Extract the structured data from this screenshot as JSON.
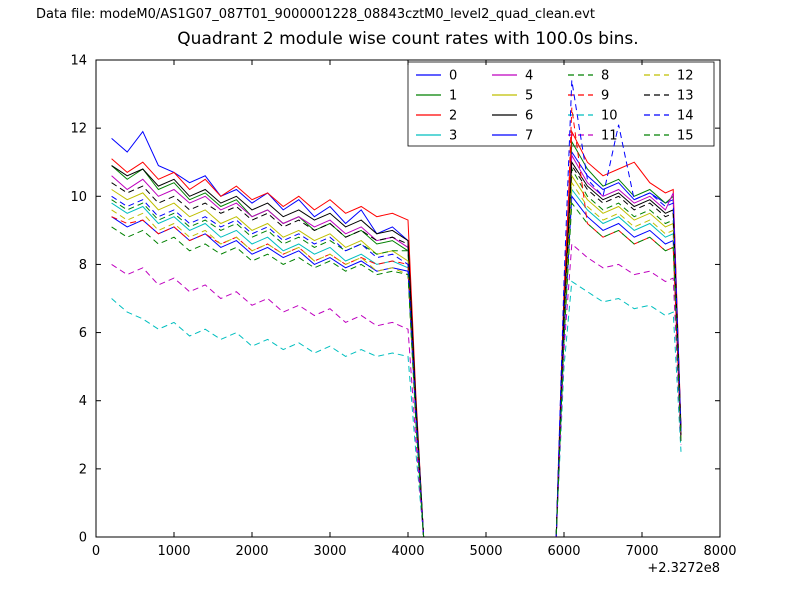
{
  "header": {
    "data_file": "Data file: modeM0/AS1G07_087T01_9000001228_08843cztM0_level2_quad_clean.evt"
  },
  "chart_data": {
    "type": "line",
    "title": "Quadrant 2 module wise count rates with 100.0s bins.",
    "xlabel": "",
    "ylabel": "",
    "x_offset_label": "+2.3272e8",
    "xlim": [
      0,
      8000
    ],
    "ylim": [
      0,
      14
    ],
    "xticks": [
      0,
      1000,
      2000,
      3000,
      4000,
      5000,
      6000,
      7000,
      8000
    ],
    "yticks": [
      0,
      2,
      4,
      6,
      8,
      10,
      12,
      14
    ],
    "grid": false,
    "legend_position": "upper center",
    "legend_columns": 4,
    "x": [
      200,
      400,
      600,
      800,
      1000,
      1200,
      1400,
      1600,
      1800,
      2000,
      2200,
      2400,
      2600,
      2800,
      3000,
      3200,
      3400,
      3600,
      3800,
      4000,
      4100,
      4200,
      5900,
      6000,
      6100,
      6300,
      6500,
      6700,
      6900,
      7100,
      7300,
      7400,
      7500
    ],
    "series": [
      {
        "name": "0",
        "color": "#0000ff",
        "style": "solid",
        "values": [
          11.7,
          11.3,
          11.9,
          10.9,
          10.7,
          10.4,
          10.6,
          10.0,
          10.2,
          9.8,
          10.1,
          9.6,
          9.9,
          9.4,
          9.7,
          9.2,
          9.6,
          8.9,
          9.1,
          8.7,
          4.0,
          0,
          0,
          7.0,
          11.3,
          10.6,
          10.2,
          10.4,
          9.9,
          10.1,
          9.8,
          9.9,
          3.1
        ]
      },
      {
        "name": "1",
        "color": "#008000",
        "style": "solid",
        "values": [
          10.9,
          10.5,
          10.8,
          10.2,
          10.4,
          9.9,
          10.1,
          9.7,
          9.9,
          9.4,
          9.6,
          9.2,
          9.4,
          9.0,
          9.2,
          8.8,
          9.0,
          8.6,
          8.7,
          8.4,
          3.8,
          0,
          0,
          6.5,
          11.6,
          10.8,
          10.3,
          10.5,
          10.0,
          10.2,
          9.8,
          10.0,
          3.0
        ]
      },
      {
        "name": "2",
        "color": "#ff0000",
        "style": "solid",
        "values": [
          11.1,
          10.7,
          11.0,
          10.5,
          10.7,
          10.2,
          10.5,
          10.0,
          10.3,
          9.9,
          10.1,
          9.7,
          10.0,
          9.6,
          9.9,
          9.5,
          9.7,
          9.4,
          9.5,
          9.3,
          4.2,
          0,
          0,
          7.2,
          11.9,
          11.0,
          10.6,
          10.8,
          11.0,
          10.4,
          10.1,
          10.2,
          3.2
        ]
      },
      {
        "name": "3",
        "color": "#00bfbf",
        "style": "solid",
        "values": [
          9.8,
          9.5,
          9.7,
          9.2,
          9.4,
          9.0,
          9.2,
          8.8,
          9.0,
          8.6,
          8.8,
          8.4,
          8.6,
          8.3,
          8.5,
          8.1,
          8.3,
          8.0,
          8.1,
          7.9,
          3.6,
          0,
          0,
          6.0,
          10.2,
          9.6,
          9.2,
          9.4,
          9.0,
          9.2,
          8.8,
          8.9,
          2.9
        ]
      },
      {
        "name": "4",
        "color": "#bf00bf",
        "style": "solid",
        "values": [
          10.6,
          10.2,
          10.5,
          10.0,
          10.2,
          9.8,
          10.0,
          9.6,
          9.8,
          9.4,
          9.6,
          9.2,
          9.4,
          9.1,
          9.3,
          8.9,
          9.1,
          8.7,
          8.8,
          8.5,
          3.9,
          0,
          0,
          6.6,
          11.2,
          10.4,
          10.0,
          10.2,
          9.8,
          10.0,
          9.6,
          10.1,
          3.1
        ]
      },
      {
        "name": "5",
        "color": "#bfbf00",
        "style": "solid",
        "values": [
          10.2,
          9.9,
          10.1,
          9.6,
          9.8,
          9.4,
          9.6,
          9.2,
          9.4,
          9.0,
          9.2,
          8.8,
          9.0,
          8.7,
          8.9,
          8.5,
          8.7,
          8.3,
          8.4,
          8.1,
          3.7,
          0,
          0,
          6.2,
          10.6,
          9.9,
          9.5,
          9.7,
          9.3,
          9.5,
          9.1,
          9.2,
          3.0
        ]
      },
      {
        "name": "6",
        "color": "#000000",
        "style": "solid",
        "values": [
          10.9,
          10.6,
          10.8,
          10.3,
          10.5,
          10.0,
          10.2,
          9.8,
          10.0,
          9.6,
          9.8,
          9.4,
          9.6,
          9.3,
          9.5,
          9.1,
          9.3,
          8.9,
          9.0,
          8.7,
          4.0,
          0,
          0,
          6.7,
          11.0,
          10.3,
          9.9,
          10.1,
          9.7,
          9.9,
          9.5,
          9.6,
          3.1
        ]
      },
      {
        "name": "7",
        "color": "#0000ff",
        "style": "solid",
        "values": [
          9.4,
          9.1,
          9.3,
          8.9,
          9.1,
          8.7,
          8.9,
          8.5,
          8.7,
          8.3,
          8.5,
          8.2,
          8.4,
          8.0,
          8.2,
          7.9,
          8.1,
          7.8,
          7.9,
          7.8,
          3.5,
          0,
          0,
          5.9,
          10.0,
          9.4,
          9.0,
          9.2,
          8.8,
          9.0,
          8.6,
          8.7,
          2.9
        ]
      },
      {
        "name": "8",
        "color": "#008000",
        "style": "dashed",
        "values": [
          9.9,
          9.6,
          9.8,
          9.3,
          9.5,
          9.1,
          9.3,
          9.0,
          9.2,
          8.8,
          9.0,
          8.6,
          8.8,
          8.5,
          8.7,
          8.4,
          8.6,
          8.3,
          8.4,
          8.4,
          3.8,
          0,
          0,
          6.3,
          10.8,
          10.0,
          9.6,
          9.8,
          9.4,
          9.6,
          9.2,
          9.3,
          3.0
        ]
      },
      {
        "name": "9",
        "color": "#ff0000",
        "style": "dashed",
        "values": [
          9.4,
          9.2,
          9.3,
          8.9,
          9.1,
          8.7,
          8.9,
          8.6,
          8.8,
          8.4,
          8.6,
          8.3,
          8.5,
          8.1,
          8.3,
          8.0,
          8.2,
          8.0,
          8.1,
          8.0,
          3.6,
          0,
          0,
          6.4,
          12.6,
          9.2,
          8.8,
          9.0,
          8.6,
          8.8,
          8.4,
          8.5,
          2.9
        ]
      },
      {
        "name": "10",
        "color": "#00bfbf",
        "style": "dashed",
        "values": [
          7.0,
          6.6,
          6.4,
          6.1,
          6.3,
          5.9,
          6.1,
          5.8,
          6.0,
          5.6,
          5.8,
          5.5,
          5.7,
          5.4,
          5.6,
          5.3,
          5.5,
          5.3,
          5.4,
          5.3,
          2.5,
          0,
          0,
          5.0,
          7.5,
          7.2,
          6.9,
          7.0,
          6.7,
          6.8,
          6.5,
          6.6,
          2.5
        ]
      },
      {
        "name": "11",
        "color": "#bf00bf",
        "style": "dashed",
        "values": [
          8.0,
          7.7,
          7.9,
          7.4,
          7.6,
          7.2,
          7.4,
          7.0,
          7.2,
          6.8,
          7.0,
          6.6,
          6.8,
          6.5,
          6.7,
          6.3,
          6.5,
          6.2,
          6.3,
          6.1,
          2.9,
          0,
          0,
          5.5,
          8.6,
          8.2,
          7.9,
          8.0,
          7.7,
          7.8,
          7.5,
          7.6,
          2.7
        ]
      },
      {
        "name": "12",
        "color": "#bfbf00",
        "style": "dashed",
        "values": [
          9.6,
          9.3,
          9.5,
          9.0,
          9.2,
          8.8,
          9.0,
          8.6,
          8.8,
          8.4,
          8.6,
          8.3,
          8.5,
          8.1,
          8.3,
          8.0,
          8.2,
          7.8,
          7.9,
          7.7,
          3.5,
          0,
          0,
          6.0,
          10.4,
          9.7,
          9.3,
          9.5,
          9.1,
          9.3,
          8.9,
          9.0,
          2.9
        ]
      },
      {
        "name": "13",
        "color": "#000000",
        "style": "dashed",
        "values": [
          10.4,
          10.1,
          10.3,
          9.8,
          10.0,
          9.6,
          9.8,
          9.5,
          9.7,
          9.3,
          9.5,
          9.1,
          9.3,
          9.0,
          9.2,
          8.8,
          9.0,
          8.7,
          8.8,
          8.6,
          3.9,
          0,
          0,
          6.5,
          10.9,
          10.2,
          9.8,
          10.0,
          9.6,
          9.8,
          9.4,
          9.5,
          3.0
        ]
      },
      {
        "name": "14",
        "color": "#0000ff",
        "style": "dashed",
        "values": [
          10.0,
          9.7,
          9.9,
          9.4,
          9.6,
          9.2,
          9.4,
          9.1,
          9.3,
          8.9,
          9.1,
          8.7,
          8.9,
          8.6,
          8.8,
          8.4,
          8.6,
          8.2,
          8.3,
          8.0,
          3.7,
          0,
          0,
          7.5,
          13.4,
          10.5,
          10.0,
          12.1,
          9.9,
          10.1,
          9.7,
          9.8,
          3.1
        ]
      },
      {
        "name": "15",
        "color": "#008000",
        "style": "dashed",
        "values": [
          9.1,
          8.8,
          9.0,
          8.6,
          8.8,
          8.4,
          8.6,
          8.3,
          8.5,
          8.1,
          8.3,
          8.0,
          8.2,
          7.9,
          8.1,
          7.8,
          8.0,
          7.7,
          7.8,
          7.7,
          3.4,
          0,
          0,
          5.8,
          9.8,
          9.2,
          8.8,
          9.0,
          8.6,
          8.8,
          8.4,
          8.5,
          2.8
        ]
      }
    ]
  }
}
